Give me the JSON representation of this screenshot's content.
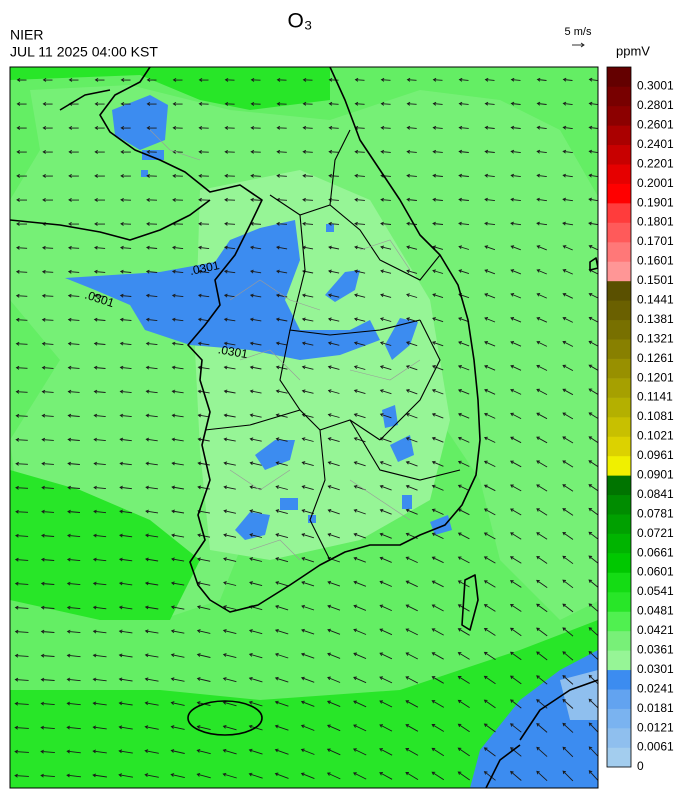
{
  "header": {
    "title": "O₃",
    "source": "NIER",
    "datetime": "JUL 11 2025 04:00 KST",
    "wind_reference": "5 m/s"
  },
  "map": {
    "contour_labels": [
      ".0301",
      ".0301",
      ".0301"
    ]
  },
  "colorbar": {
    "unit": "ppmV",
    "levels": [
      0,
      0.0061,
      0.0121,
      0.0181,
      0.0241,
      0.0301,
      0.0361,
      0.0421,
      0.0481,
      0.0541,
      0.0601,
      0.0661,
      0.0721,
      0.0781,
      0.0841,
      0.0901,
      0.0961,
      0.1021,
      0.1081,
      0.1141,
      0.1201,
      0.1261,
      0.1321,
      0.1381,
      0.1441,
      0.1501,
      0.1601,
      0.1701,
      0.1801,
      0.1901,
      0.2001,
      0.2201,
      0.2401,
      0.2601,
      0.2801,
      0.3001
    ],
    "colors": [
      "#a3cdee",
      "#8fbfee",
      "#7ab3f0",
      "#62a3f0",
      "#3c8cf0",
      "#96f596",
      "#78f078",
      "#50f050",
      "#28e628",
      "#14dc14",
      "#00c800",
      "#00b400",
      "#00a000",
      "#008c00",
      "#007400",
      "#f0f000",
      "#dcd200",
      "#c8c000",
      "#b4b000",
      "#a6a000",
      "#989000",
      "#888000",
      "#787000",
      "#6a6000",
      "#5a5000",
      "#ff9696",
      "#ff7878",
      "#ff5a5a",
      "#ff3c3c",
      "#ff0000",
      "#e60000",
      "#c80000",
      "#aa0000",
      "#8c0000",
      "#780000",
      "#640000"
    ]
  }
}
